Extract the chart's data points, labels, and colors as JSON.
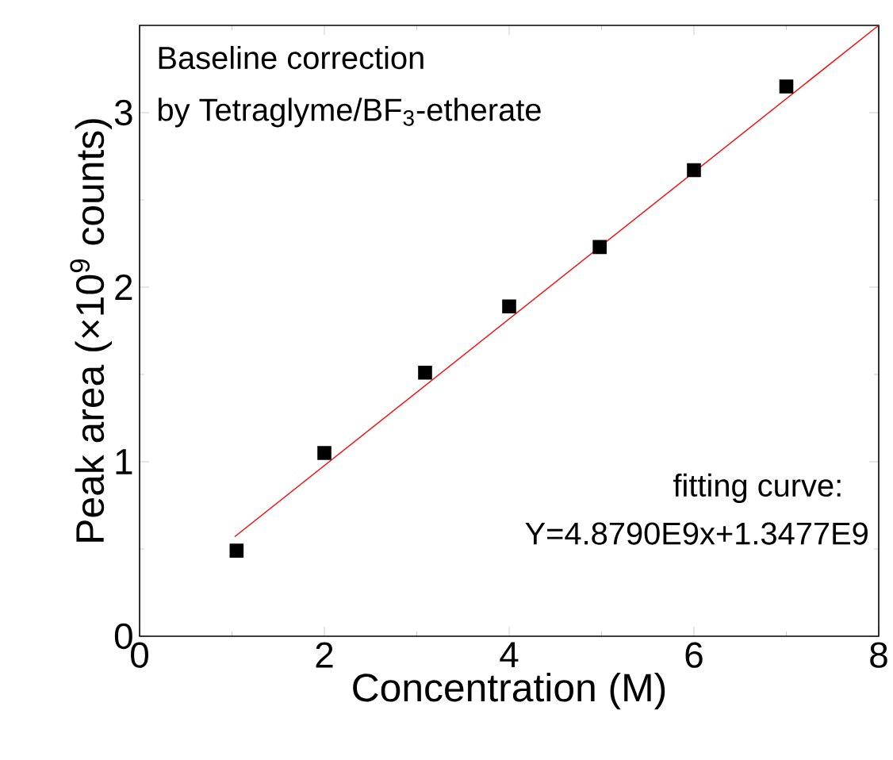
{
  "chart_data": {
    "type": "scatter",
    "xlabel": "Concentration (M)",
    "ylabel": "Peak area (×10$^{9}$ counts)",
    "annotations": [
      "Baseline correction",
      "by Tetraglyme/BF$_{3}$-etherate",
      "fitting curve:",
      "Y=4.8790E9x+1.3477E9"
    ],
    "xlim": [
      0,
      8
    ],
    "ylim": [
      0,
      3.5
    ],
    "xticks": [
      0,
      2,
      4,
      6,
      8
    ],
    "yticks": [
      0,
      1,
      2,
      3
    ],
    "grid": false,
    "series": [
      {
        "marker": "square",
        "color": "#000000",
        "x": [
          1.05,
          2,
          3.09,
          4.0,
          4.98,
          6.0,
          7.0
        ],
        "values": [
          0.49,
          1.05,
          1.51,
          1.89,
          2.23,
          2.67,
          3.15
        ]
      },
      {
        "type": "line",
        "color": "#ff0000",
        "x": [
          1.03,
          8
        ],
        "values": [
          0.57,
          3.5
        ]
      }
    ]
  }
}
